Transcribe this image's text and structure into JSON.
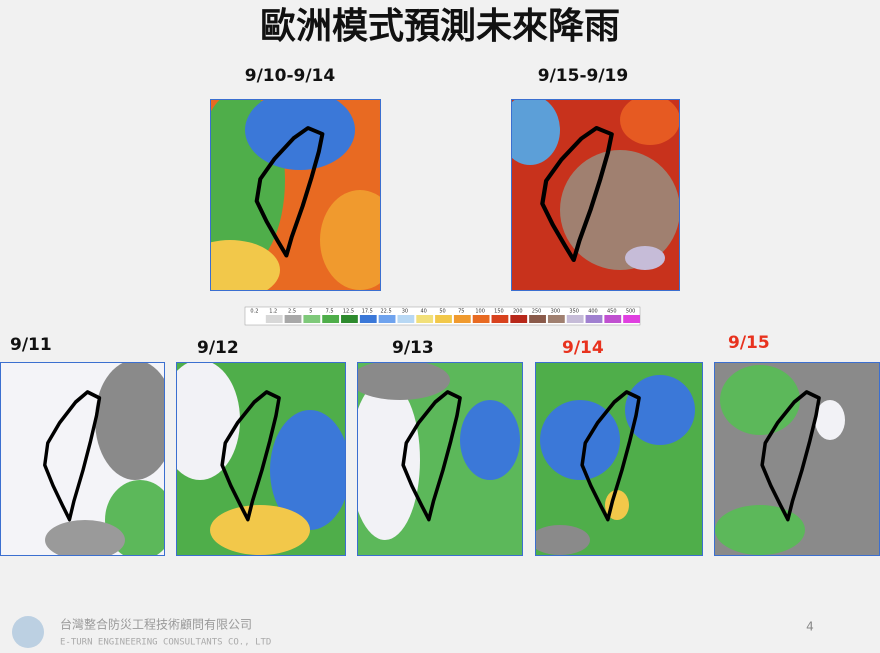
{
  "header": {
    "title": "歐洲模式預測未來降雨"
  },
  "top_panels": [
    {
      "label": "9/10-9/14"
    },
    {
      "label": "9/15-9/19"
    }
  ],
  "colorbar": {
    "labels": [
      "0.2",
      "1.2",
      "2.5",
      "5",
      "7.5",
      "12.5",
      "17.5",
      "22.5",
      "30",
      "40",
      "50",
      "75",
      "100",
      "150",
      "200",
      "250",
      "300",
      "350",
      "400",
      "450",
      "500"
    ]
  },
  "bottom_panels": [
    {
      "label": "9/11"
    },
    {
      "label": "9/12"
    },
    {
      "label": "9/13"
    },
    {
      "label": "9/14"
    },
    {
      "label": "9/15"
    }
  ],
  "footer": {
    "company": "台灣整合防災工程技術顧問有限公司",
    "company_en": "E-TURN ENGINEERING CONSULTANTS CO., LTD",
    "page_number": "4"
  }
}
